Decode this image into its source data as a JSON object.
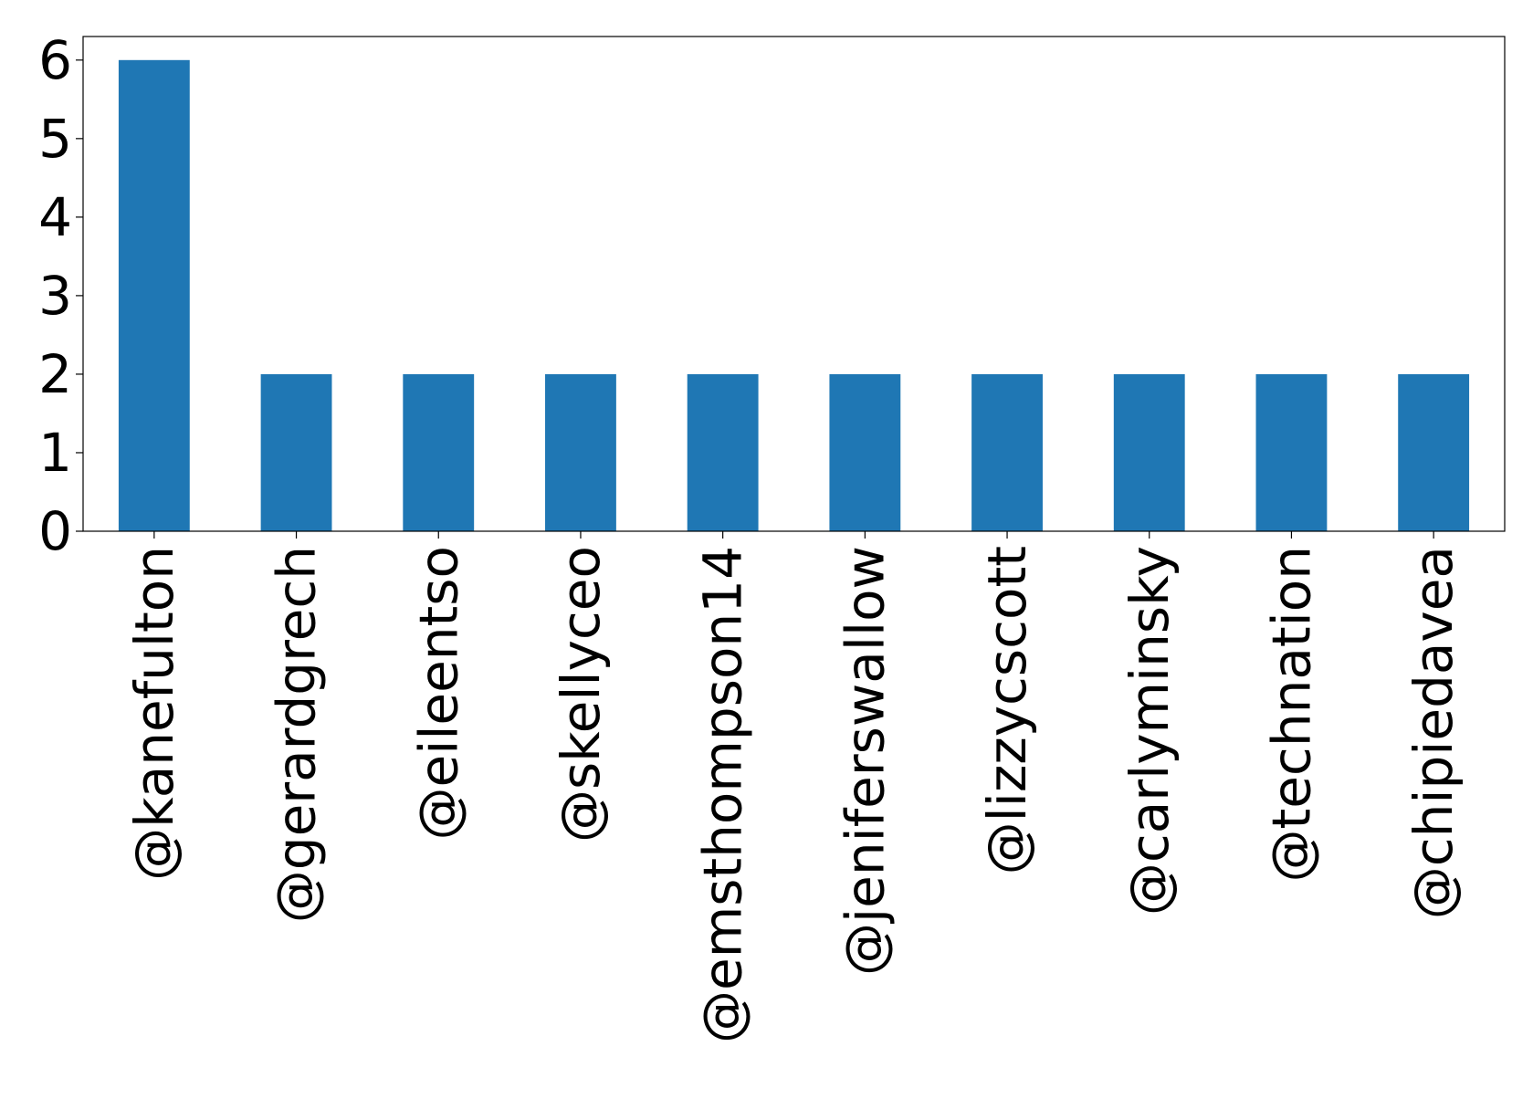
{
  "chart_data": {
    "type": "bar",
    "title": "",
    "xlabel": "",
    "ylabel": "",
    "categories": [
      "@kanefulton",
      "@gerardgrech",
      "@eileentso",
      "@skellyceo",
      "@emsthompson14",
      "@jeniferswallow",
      "@lizzycscott",
      "@carlyminsky",
      "@technation",
      "@chipiedavea"
    ],
    "values": [
      6,
      2,
      2,
      2,
      2,
      2,
      2,
      2,
      2,
      2
    ],
    "ylim": [
      0,
      6.3
    ],
    "yticks": [
      0,
      1,
      2,
      3,
      4,
      5,
      6
    ],
    "bar_color": "#1f77b4",
    "grid": false,
    "legend": "none"
  }
}
